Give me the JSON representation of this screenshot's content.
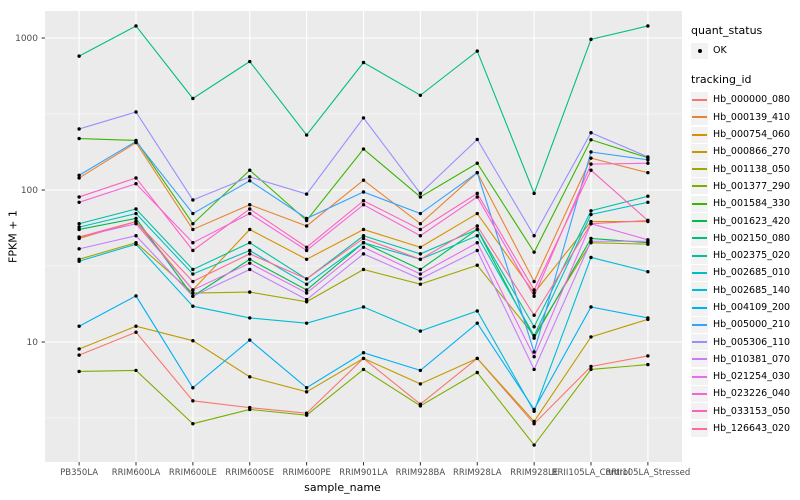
{
  "figure": {
    "x_axis_title": "sample_name",
    "y_axis_title": "FPKM + 1",
    "legend": {
      "quant_status_title": "quant_status",
      "quant_status_items": [
        {
          "label": "OK",
          "marker": "point-icon",
          "color": "#000000"
        }
      ],
      "tracking_id_title": "tracking_id"
    }
  },
  "chart_data": {
    "type": "line",
    "title": "",
    "xlabel": "sample_name",
    "ylabel": "FPKM + 1",
    "y_scale": "log10",
    "ylim": [
      1.6,
      1600
    ],
    "y_ticks": [
      10,
      100,
      1000
    ],
    "y_minor_ticks": [
      3.162,
      31.62,
      316.2
    ],
    "grid": true,
    "legend_position": "right",
    "point_marker": {
      "shape": "circle",
      "color": "#000000",
      "meaning": "quant_status OK"
    },
    "colors": {
      "panel_bg": "#EBEBEB",
      "grid": "#FFFFFF",
      "tick_label": "#4D4D4D",
      "axis_title": "#000000",
      "legend_key_bg": "#F2F2F2"
    },
    "categories": [
      "PB350LA",
      "RRIM600LA",
      "RRIM600LE",
      "RRIM600SE",
      "RRIM600PE",
      "RRIM901LA",
      "RRIM928BA",
      "RRIM928LA",
      "RRIM928LE",
      "RRII105LA_Control",
      "RRII105LA_Stressed"
    ],
    "series": [
      {
        "name": "Hb_000000_080",
        "color": "#F8766D",
        "values": [
          8.2,
          11.6,
          4.1,
          3.7,
          3.4,
          7.8,
          3.9,
          7.8,
          2.9,
          6.9,
          8.1
        ]
      },
      {
        "name": "Hb_000139_410",
        "color": "#EA8331",
        "values": [
          120,
          205,
          55,
          80,
          58,
          116,
          60,
          130,
          25,
          162,
          130
        ]
      },
      {
        "name": "Hb_000754_060",
        "color": "#D89000",
        "values": [
          48,
          62,
          22,
          55,
          35,
          55,
          42,
          70,
          21,
          62,
          62
        ]
      },
      {
        "name": "Hb_000866_270",
        "color": "#C09B00",
        "values": [
          9.0,
          12.7,
          10.2,
          5.9,
          4.7,
          7.8,
          5.3,
          7.8,
          3.0,
          10.8,
          14.1
        ]
      },
      {
        "name": "Hb_001138_050",
        "color": "#A3A500",
        "values": [
          35,
          45,
          21,
          21.3,
          18.4,
          30,
          24,
          32,
          11,
          45,
          44
        ]
      },
      {
        "name": "Hb_001377_290",
        "color": "#7CAE00",
        "values": [
          6.4,
          6.5,
          2.9,
          3.6,
          3.3,
          6.6,
          3.8,
          6.3,
          2.1,
          6.6,
          7.1
        ]
      },
      {
        "name": "Hb_001584_330",
        "color": "#39B600",
        "values": [
          218,
          212,
          60,
          135,
          63,
          186,
          90,
          150,
          39,
          214,
          163
        ]
      },
      {
        "name": "Hb_001623_420",
        "color": "#00BB4E",
        "values": [
          55,
          65,
          20,
          35,
          22,
          45,
          30,
          55,
          10.6,
          48,
          45
        ]
      },
      {
        "name": "Hb_002150_080",
        "color": "#00BF7D",
        "values": [
          760,
          1200,
          400,
          700,
          230,
          690,
          420,
          820,
          95,
          980,
          1200
        ]
      },
      {
        "name": "Hb_002375_020",
        "color": "#00C1A3",
        "values": [
          60,
          75,
          30,
          45,
          26,
          50,
          38,
          55,
          12.6,
          73,
          91
        ]
      },
      {
        "name": "Hb_002685_010",
        "color": "#00BFC4",
        "values": [
          57,
          70,
          28,
          40,
          24,
          45,
          35,
          50,
          11,
          69,
          83
        ]
      },
      {
        "name": "Hb_002685_140",
        "color": "#00BBDA",
        "values": [
          34,
          44,
          17.2,
          14.4,
          13.3,
          17.0,
          11.8,
          16,
          3.5,
          36,
          29
        ]
      },
      {
        "name": "Hb_004109_200",
        "color": "#00B0F6",
        "values": [
          12.7,
          20.1,
          5.0,
          10.3,
          5.0,
          8.5,
          6.5,
          13.3,
          3.6,
          17.0,
          14.4
        ]
      },
      {
        "name": "Hb_005000_210",
        "color": "#35A2FF",
        "values": [
          125,
          209,
          70,
          115,
          65,
          97,
          70,
          130,
          8.6,
          178,
          158
        ]
      },
      {
        "name": "Hb_005306_110",
        "color": "#9590FF",
        "values": [
          252,
          326,
          86,
          122,
          94,
          298,
          95,
          215,
          50,
          238,
          165
        ]
      },
      {
        "name": "Hb_010381_070",
        "color": "#C77CFF",
        "values": [
          41,
          50,
          20,
          30,
          19,
          38,
          26,
          40,
          6.6,
          46,
          46
        ]
      },
      {
        "name": "Hb_021254_030",
        "color": "#E76BF3",
        "values": [
          49,
          60,
          22,
          33,
          21,
          42,
          28,
          45,
          8.0,
          60,
          47
        ]
      },
      {
        "name": "Hb_023226_040",
        "color": "#FA62DB",
        "values": [
          83,
          110,
          45,
          70,
          40,
          80,
          50,
          90,
          20,
          148,
          150
        ]
      },
      {
        "name": "Hb_033153_050",
        "color": "#FF62BC",
        "values": [
          90,
          120,
          40,
          75,
          42,
          85,
          55,
          95,
          22,
          135,
          63
        ]
      },
      {
        "name": "Hb_126643_020",
        "color": "#FF6A98",
        "values": [
          49,
          62,
          25,
          38,
          26,
          48,
          35,
          58,
          15,
          60,
          63
        ]
      }
    ]
  }
}
